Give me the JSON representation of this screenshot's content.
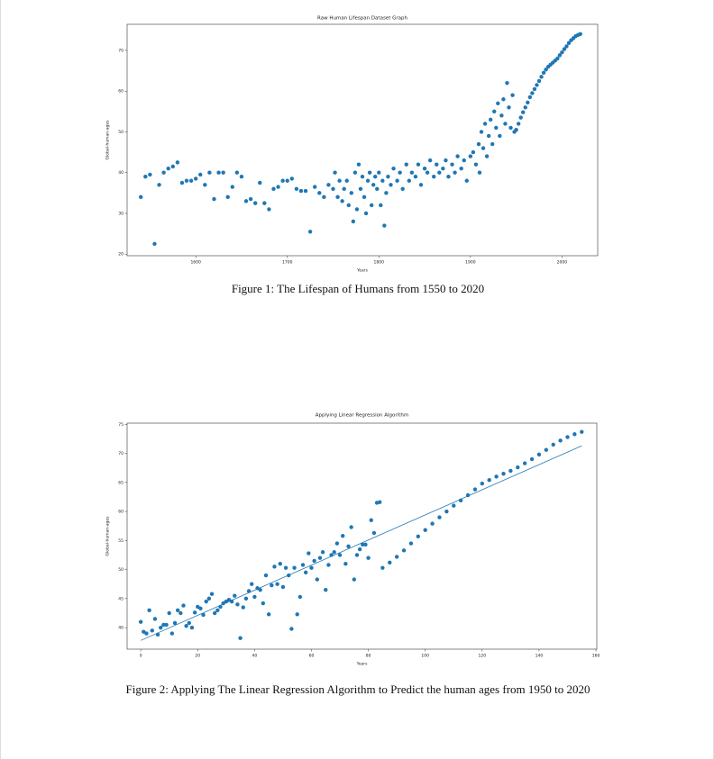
{
  "chart_data": [
    {
      "type": "scatter",
      "title": "Raw Human Lifespan Dataset Graph",
      "x_label": "Years",
      "y_label": "Global-human-ages",
      "caption": "Figure 1: The Lifespan of Humans from 1550 to 2020",
      "color": "#1f77b4",
      "xlim": [
        1525,
        2039
      ],
      "ylim": [
        19.6,
        76.4
      ],
      "xticks": [
        1600,
        1700,
        1800,
        1900,
        2000
      ],
      "yticks": [
        20,
        30,
        40,
        50,
        60,
        70
      ],
      "x": [
        1540,
        1545,
        1550,
        1555,
        1560,
        1565,
        1570,
        1575,
        1580,
        1585,
        1590,
        1595,
        1600,
        1605,
        1610,
        1615,
        1620,
        1625,
        1630,
        1635,
        1640,
        1645,
        1650,
        1655,
        1660,
        1665,
        1670,
        1675,
        1680,
        1685,
        1690,
        1695,
        1700,
        1705,
        1710,
        1715,
        1720,
        1725,
        1730,
        1735,
        1740,
        1745,
        1750,
        1752,
        1755,
        1757,
        1760,
        1762,
        1765,
        1767,
        1770,
        1772,
        1774,
        1776,
        1778,
        1780,
        1782,
        1784,
        1786,
        1788,
        1790,
        1792,
        1794,
        1796,
        1798,
        1800,
        1802,
        1804,
        1806,
        1808,
        1810,
        1813,
        1816,
        1820,
        1823,
        1826,
        1830,
        1833,
        1836,
        1840,
        1843,
        1846,
        1850,
        1853,
        1856,
        1860,
        1863,
        1866,
        1870,
        1873,
        1876,
        1880,
        1883,
        1886,
        1890,
        1893,
        1896,
        1900,
        1903,
        1906,
        1909,
        1910,
        1912,
        1914,
        1916,
        1918,
        1920,
        1922,
        1924,
        1926,
        1928,
        1930,
        1932,
        1934,
        1936,
        1938,
        1940,
        1942,
        1944,
        1946,
        1948,
        1950,
        1952.5,
        1955,
        1957.5,
        1960,
        1962.5,
        1965,
        1967.5,
        1970,
        1972.5,
        1975,
        1977.5,
        1980,
        1982.5,
        1985,
        1987.5,
        1990,
        1992.5,
        1995,
        1997.5,
        2000,
        2002.5,
        2005,
        2007.5,
        2010,
        2012.5,
        2015,
        2017.5,
        2020
      ],
      "values": [
        34,
        39,
        39.5,
        22.5,
        37,
        40,
        41,
        41.5,
        42.5,
        37.5,
        38,
        38,
        38.5,
        39.5,
        37,
        40,
        33.5,
        40,
        40,
        34,
        36.5,
        40,
        39,
        33,
        33.5,
        32.5,
        37.5,
        32.5,
        31,
        36,
        36.5,
        38,
        38,
        38.5,
        36,
        35.5,
        35.5,
        25.5,
        36.5,
        35,
        34,
        37,
        36,
        40,
        34,
        38,
        33,
        36,
        38,
        32,
        35,
        28,
        40,
        31,
        42,
        36,
        39,
        34,
        30,
        38,
        40,
        32,
        37,
        39,
        36,
        40,
        32,
        38,
        27,
        35,
        39,
        37,
        41,
        38,
        40,
        36,
        42,
        38,
        40,
        39,
        42,
        37,
        41,
        40,
        43,
        39,
        42,
        40,
        41,
        43,
        39,
        42,
        40,
        44,
        41,
        43,
        38,
        44,
        45,
        42,
        47,
        40,
        50,
        46,
        52,
        44,
        49,
        53,
        47,
        55,
        51,
        57,
        49,
        54,
        58,
        52,
        62,
        56,
        51,
        59,
        50,
        50.5,
        52,
        53.5,
        54.8,
        56,
        57.2,
        58.5,
        59.5,
        60.5,
        61.5,
        62.5,
        63.5,
        64.5,
        65.3,
        66,
        66.5,
        67,
        67.5,
        68,
        68.8,
        69.5,
        70.3,
        71,
        71.8,
        72.5,
        73,
        73.5,
        73.8,
        74
      ]
    },
    {
      "type": "scatter",
      "title": "Applying Linear Regression Algorithm",
      "x_label": "Years",
      "y_label": "Global-human-ages",
      "caption": "Figure 2: Applying The Linear Regression Algorithm to Predict the human ages from 1950 to 2020",
      "color": "#1f77b4",
      "xlim": [
        -4.8,
        160.3
      ],
      "ylim": [
        36.3,
        75.2
      ],
      "xticks": [
        0,
        20,
        40,
        60,
        80,
        100,
        120,
        140,
        160
      ],
      "yticks": [
        40,
        45,
        50,
        55,
        60,
        65,
        70,
        75
      ],
      "x": [
        0,
        1,
        2,
        3,
        4,
        5,
        6,
        7,
        8,
        9,
        10,
        11,
        12,
        13,
        14,
        15,
        16,
        17,
        18,
        19,
        20,
        21,
        22,
        23,
        24,
        25,
        26,
        27,
        28,
        29,
        30,
        31,
        32,
        33,
        34,
        35,
        36,
        37,
        38,
        39,
        40,
        41,
        42,
        43,
        44,
        45,
        46,
        47,
        48,
        49,
        50,
        51,
        52,
        53,
        54,
        55,
        56,
        57,
        58,
        59,
        60,
        61,
        62,
        63,
        64,
        65,
        66,
        67,
        68,
        69,
        70,
        71,
        72,
        73,
        74,
        75,
        76,
        77,
        78,
        79,
        80,
        81,
        82,
        83,
        84,
        85,
        87.5,
        90,
        92.5,
        95,
        97.5,
        100,
        102.5,
        105,
        107.5,
        110,
        112.5,
        115,
        117.5,
        120,
        122.5,
        125,
        127.5,
        130,
        132.5,
        135,
        137.5,
        140,
        142.5,
        145,
        147.5,
        150,
        152.5,
        155
      ],
      "values": [
        41,
        39.3,
        39,
        43,
        39.5,
        41.5,
        38.8,
        40,
        40.5,
        40.5,
        42.5,
        39,
        40.8,
        43,
        42.5,
        43.8,
        40.3,
        40.8,
        40,
        42.6,
        43.6,
        43.3,
        42.2,
        44.5,
        45,
        45.8,
        42.5,
        43,
        43.6,
        44.2,
        44.5,
        44.8,
        44.5,
        45.5,
        44,
        38.2,
        43.5,
        45,
        46.3,
        47.5,
        45.3,
        46.8,
        46.5,
        44.2,
        49,
        42.3,
        47.3,
        50.5,
        47.5,
        51,
        47,
        50.3,
        49,
        39.8,
        50.3,
        42.3,
        45.3,
        50.8,
        49.5,
        52.8,
        50.3,
        51.5,
        48.3,
        52,
        53,
        46.5,
        50.8,
        52.5,
        53,
        54.5,
        52.5,
        55.8,
        51,
        54,
        57.3,
        48.3,
        52.5,
        53.5,
        54.3,
        54.3,
        52,
        58.5,
        56.3,
        61.5,
        61.6,
        50.3,
        51.2,
        52.2,
        53.3,
        54.5,
        55.7,
        56.8,
        57.9,
        59,
        60,
        61,
        61.9,
        62.8,
        63.8,
        64.8,
        65.4,
        66,
        66.5,
        67,
        67.6,
        68.3,
        69,
        69.8,
        70.6,
        71.5,
        72.2,
        72.8,
        73.3,
        73.7
      ],
      "line": {
        "x": [
          0,
          155
        ],
        "values": [
          37.8,
          71.3
        ]
      }
    }
  ]
}
